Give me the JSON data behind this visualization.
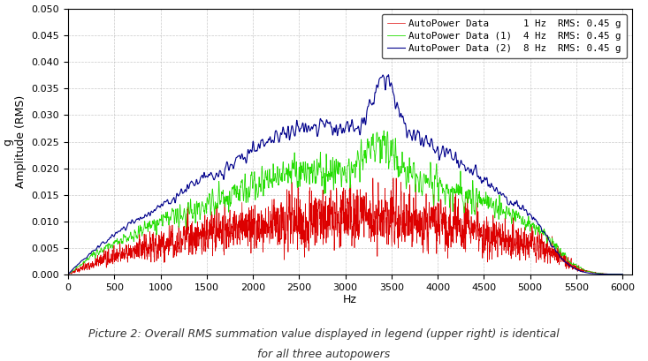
{
  "title": "",
  "xlabel": "Hz",
  "ylabel": "g\nAmplitude (RMS)",
  "xlim": [
    0,
    6100
  ],
  "ylim": [
    0,
    0.05
  ],
  "yticks": [
    0.0,
    0.005,
    0.01,
    0.015,
    0.02,
    0.025,
    0.03,
    0.035,
    0.04,
    0.045,
    0.05
  ],
  "xticks": [
    0,
    500,
    1000,
    1500,
    2000,
    2500,
    3000,
    3500,
    4000,
    4500,
    5000,
    5500,
    6000
  ],
  "colors": [
    "#dd0000",
    "#22dd00",
    "#00008b"
  ],
  "legend_labels": [
    "AutoPower Data      1 Hz  RMS: 0.45 g",
    "AutoPower Data (1)  4 Hz  RMS: 0.45 g",
    "AutoPower Data (2)  8 Hz  RMS: 0.45 g"
  ],
  "background_color": "#ffffff",
  "plot_bg_color": "#ffffff",
  "grid_color": "#bbbbbb",
  "caption_line1": "Picture 2: Overall RMS summation value displayed in legend (upper right) is identical",
  "caption_line2": "for all three autopowers",
  "seed": 12345,
  "n_points": 6000
}
